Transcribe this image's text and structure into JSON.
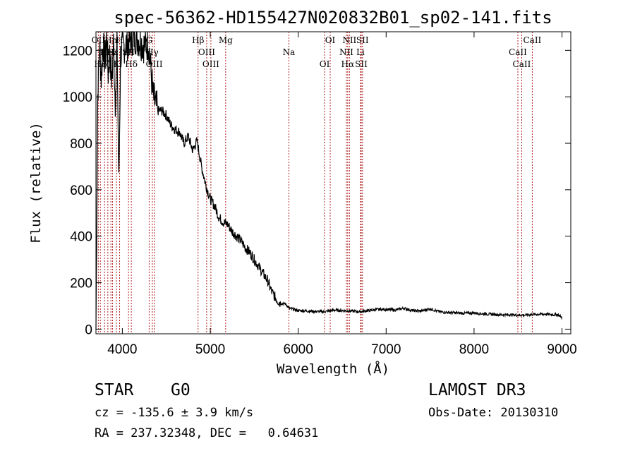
{
  "chart_data": {
    "type": "line",
    "title": "spec-56362-HD155427N020832B01_sp02-141.fits",
    "xlabel": "Wavelength (Å)",
    "ylabel": "Flux (relative)",
    "xlim": [
      3700,
      9100
    ],
    "ylim": [
      -20,
      1280
    ],
    "xticks": [
      4000,
      5000,
      6000,
      7000,
      8000,
      9000
    ],
    "yticks": [
      0,
      200,
      400,
      600,
      800,
      1000,
      1200
    ],
    "series": [
      {
        "name": "flux",
        "x": [
          3700,
          3720,
          3740,
          3760,
          3780,
          3800,
          3820,
          3840,
          3860,
          3880,
          3900,
          3920,
          3940,
          3960,
          3980,
          4000,
          4050,
          4100,
          4150,
          4200,
          4250,
          4300,
          4350,
          4400,
          4450,
          4500,
          4550,
          4600,
          4650,
          4700,
          4750,
          4800,
          4850,
          4900,
          4950,
          5000,
          5050,
          5100,
          5150,
          5200,
          5250,
          5300,
          5350,
          5400,
          5450,
          5500,
          5550,
          5600,
          5650,
          5700,
          5750,
          5800,
          5850,
          5900,
          5950,
          6000,
          6100,
          6200,
          6300,
          6400,
          6500,
          6600,
          6700,
          6800,
          6900,
          7000,
          7100,
          7200,
          7300,
          7400,
          7500,
          7600,
          7700,
          7800,
          7900,
          8000,
          8100,
          8200,
          8300,
          8400,
          8500,
          8600,
          8700,
          8800,
          8900,
          8950,
          9000
        ],
        "y": [
          0,
          1010,
          1220,
          1080,
          1240,
          1150,
          1260,
          1100,
          1200,
          1050,
          1230,
          980,
          1250,
          620,
          1180,
          1210,
          1230,
          1250,
          1260,
          1240,
          1220,
          1230,
          1000,
          940,
          940,
          920,
          880,
          860,
          850,
          800,
          830,
          770,
          810,
          700,
          620,
          560,
          530,
          480,
          460,
          450,
          420,
          400,
          380,
          350,
          330,
          300,
          270,
          240,
          210,
          160,
          130,
          110,
          110,
          90,
          85,
          80,
          78,
          76,
          75,
          82,
          80,
          78,
          75,
          80,
          85,
          85,
          82,
          90,
          80,
          78,
          88,
          75,
          72,
          70,
          68,
          70,
          66,
          64,
          62,
          62,
          60,
          61,
          64,
          65,
          62,
          63,
          50
        ]
      }
    ],
    "lines": [
      {
        "label": "OII",
        "x": 3727,
        "row": 1
      },
      {
        "label": "Hη",
        "x": 3750,
        "row": 3
      },
      {
        "label": "Hζ",
        "x": 3798,
        "row": 3
      },
      {
        "label": "HeI",
        "x": 3835,
        "row": 2
      },
      {
        "label": "Hn",
        "x": 3870,
        "row": 1
      },
      {
        "label": "Hε",
        "x": 3889,
        "row": 2
      },
      {
        "label": "K",
        "x": 3934,
        "row": 3
      },
      {
        "label": "H",
        "x": 3969,
        "row": 1
      },
      {
        "label": "SII",
        "x": 4070,
        "row": 2
      },
      {
        "label": "Hδ",
        "x": 4102,
        "row": 3
      },
      {
        "label": "G",
        "x": 4305,
        "row": 1
      },
      {
        "label": "Hγ",
        "x": 4341,
        "row": 2
      },
      {
        "label": "OIII",
        "x": 4363,
        "row": 3
      },
      {
        "label": "Hβ",
        "x": 4861,
        "row": 1
      },
      {
        "label": "OIII",
        "x": 4959,
        "row": 2
      },
      {
        "label": "OIII",
        "x": 5007,
        "row": 3
      },
      {
        "label": "Mg",
        "x": 5175,
        "row": 1
      },
      {
        "label": "Na",
        "x": 5894,
        "row": 2
      },
      {
        "label": "OI",
        "x": 6300,
        "row": 3
      },
      {
        "label": "OI",
        "x": 6364,
        "row": 1
      },
      {
        "label": "NII",
        "x": 6548,
        "row": 2
      },
      {
        "label": "Hα",
        "x": 6563,
        "row": 3
      },
      {
        "label": "NII",
        "x": 6583,
        "row": 1
      },
      {
        "label": "Li",
        "x": 6708,
        "row": 2
      },
      {
        "label": "SII",
        "x": 6717,
        "row": 3
      },
      {
        "label": "SII",
        "x": 6731,
        "row": 1
      },
      {
        "label": "CaII",
        "x": 8498,
        "row": 2
      },
      {
        "label": "CaII",
        "x": 8542,
        "row": 3
      },
      {
        "label": "CaII",
        "x": 8662,
        "row": 1
      }
    ]
  },
  "info": {
    "class": "STAR",
    "subclass": "G0",
    "survey": "LAMOST DR3",
    "cz": "cz = -135.6 ± 3.9 km/s",
    "obs_date": "Obs-Date: 20130310",
    "coords": "RA = 237.32348, DEC =   0.64631"
  },
  "colors": {
    "spectrum": "#000000",
    "line_marker": "#b22222",
    "axis": "#000000"
  }
}
